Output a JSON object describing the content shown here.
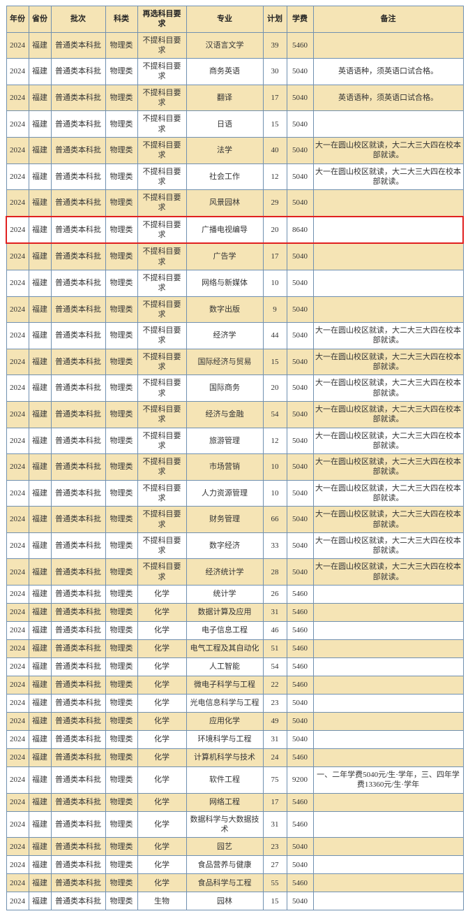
{
  "table": {
    "columns": [
      "年份",
      "省份",
      "批次",
      "科类",
      "再选科目要求",
      "专业",
      "计划",
      "学费",
      "备注"
    ],
    "column_classes": [
      "col-year",
      "col-prov",
      "col-batch",
      "col-cat",
      "col-req",
      "col-major",
      "col-plan",
      "col-fee",
      "col-note"
    ],
    "header_bg": "#f5e4b5",
    "zebra_bg": "#f5e4b5",
    "plain_bg": "#ffffff",
    "border_color": "#7090b0",
    "highlight_border": "#e02020",
    "font_family": "SimSun",
    "font_size_pt": 9,
    "highlighted_row_index": 7,
    "rows": [
      [
        "2024",
        "福建",
        "普通类本科批",
        "物理类",
        "不提科目要求",
        "汉语言文学",
        "39",
        "5460",
        ""
      ],
      [
        "2024",
        "福建",
        "普通类本科批",
        "物理类",
        "不提科目要求",
        "商务英语",
        "30",
        "5040",
        "英语语种，须英语口试合格。"
      ],
      [
        "2024",
        "福建",
        "普通类本科批",
        "物理类",
        "不提科目要求",
        "翻译",
        "17",
        "5040",
        "英语语种，须英语口试合格。"
      ],
      [
        "2024",
        "福建",
        "普通类本科批",
        "物理类",
        "不提科目要求",
        "日语",
        "15",
        "5040",
        ""
      ],
      [
        "2024",
        "福建",
        "普通类本科批",
        "物理类",
        "不提科目要求",
        "法学",
        "40",
        "5040",
        "大一在圆山校区就读，大二大三大四在校本部就读。"
      ],
      [
        "2024",
        "福建",
        "普通类本科批",
        "物理类",
        "不提科目要求",
        "社会工作",
        "12",
        "5040",
        "大一在圆山校区就读，大二大三大四在校本部就读。"
      ],
      [
        "2024",
        "福建",
        "普通类本科批",
        "物理类",
        "不提科目要求",
        "风景园林",
        "29",
        "5040",
        ""
      ],
      [
        "2024",
        "福建",
        "普通类本科批",
        "物理类",
        "不提科目要求",
        "广播电视编导",
        "20",
        "8640",
        ""
      ],
      [
        "2024",
        "福建",
        "普通类本科批",
        "物理类",
        "不提科目要求",
        "广告学",
        "17",
        "5040",
        ""
      ],
      [
        "2024",
        "福建",
        "普通类本科批",
        "物理类",
        "不提科目要求",
        "网络与新媒体",
        "10",
        "5040",
        ""
      ],
      [
        "2024",
        "福建",
        "普通类本科批",
        "物理类",
        "不提科目要求",
        "数字出版",
        "9",
        "5040",
        ""
      ],
      [
        "2024",
        "福建",
        "普通类本科批",
        "物理类",
        "不提科目要求",
        "经济学",
        "44",
        "5040",
        "大一在圆山校区就读，大二大三大四在校本部就读。"
      ],
      [
        "2024",
        "福建",
        "普通类本科批",
        "物理类",
        "不提科目要求",
        "国际经济与贸易",
        "15",
        "5040",
        "大一在圆山校区就读，大二大三大四在校本部就读。"
      ],
      [
        "2024",
        "福建",
        "普通类本科批",
        "物理类",
        "不提科目要求",
        "国际商务",
        "20",
        "5040",
        "大一在圆山校区就读，大二大三大四在校本部就读。"
      ],
      [
        "2024",
        "福建",
        "普通类本科批",
        "物理类",
        "不提科目要求",
        "经济与金融",
        "54",
        "5040",
        "大一在圆山校区就读，大二大三大四在校本部就读。"
      ],
      [
        "2024",
        "福建",
        "普通类本科批",
        "物理类",
        "不提科目要求",
        "旅游管理",
        "12",
        "5040",
        "大一在圆山校区就读，大二大三大四在校本部就读。"
      ],
      [
        "2024",
        "福建",
        "普通类本科批",
        "物理类",
        "不提科目要求",
        "市场营销",
        "10",
        "5040",
        "大一在圆山校区就读，大二大三大四在校本部就读。"
      ],
      [
        "2024",
        "福建",
        "普通类本科批",
        "物理类",
        "不提科目要求",
        "人力资源管理",
        "10",
        "5040",
        "大一在圆山校区就读，大二大三大四在校本部就读。"
      ],
      [
        "2024",
        "福建",
        "普通类本科批",
        "物理类",
        "不提科目要求",
        "财务管理",
        "66",
        "5040",
        "大一在圆山校区就读，大二大三大四在校本部就读。"
      ],
      [
        "2024",
        "福建",
        "普通类本科批",
        "物理类",
        "不提科目要求",
        "数字经济",
        "33",
        "5040",
        "大一在圆山校区就读，大二大三大四在校本部就读。"
      ],
      [
        "2024",
        "福建",
        "普通类本科批",
        "物理类",
        "不提科目要求",
        "经济统计学",
        "28",
        "5040",
        "大一在圆山校区就读，大二大三大四在校本部就读。"
      ],
      [
        "2024",
        "福建",
        "普通类本科批",
        "物理类",
        "化学",
        "统计学",
        "26",
        "5460",
        ""
      ],
      [
        "2024",
        "福建",
        "普通类本科批",
        "物理类",
        "化学",
        "数据计算及应用",
        "31",
        "5460",
        ""
      ],
      [
        "2024",
        "福建",
        "普通类本科批",
        "物理类",
        "化学",
        "电子信息工程",
        "46",
        "5460",
        ""
      ],
      [
        "2024",
        "福建",
        "普通类本科批",
        "物理类",
        "化学",
        "电气工程及其自动化",
        "51",
        "5460",
        ""
      ],
      [
        "2024",
        "福建",
        "普通类本科批",
        "物理类",
        "化学",
        "人工智能",
        "54",
        "5460",
        ""
      ],
      [
        "2024",
        "福建",
        "普通类本科批",
        "物理类",
        "化学",
        "微电子科学与工程",
        "22",
        "5460",
        ""
      ],
      [
        "2024",
        "福建",
        "普通类本科批",
        "物理类",
        "化学",
        "光电信息科学与工程",
        "23",
        "5040",
        ""
      ],
      [
        "2024",
        "福建",
        "普通类本科批",
        "物理类",
        "化学",
        "应用化学",
        "49",
        "5040",
        ""
      ],
      [
        "2024",
        "福建",
        "普通类本科批",
        "物理类",
        "化学",
        "环境科学与工程",
        "31",
        "5040",
        ""
      ],
      [
        "2024",
        "福建",
        "普通类本科批",
        "物理类",
        "化学",
        "计算机科学与技术",
        "24",
        "5460",
        ""
      ],
      [
        "2024",
        "福建",
        "普通类本科批",
        "物理类",
        "化学",
        "软件工程",
        "75",
        "9200",
        "一、二年学费5040元/生·学年，三、四年学费13360元/生·学年"
      ],
      [
        "2024",
        "福建",
        "普通类本科批",
        "物理类",
        "化学",
        "网络工程",
        "17",
        "5460",
        ""
      ],
      [
        "2024",
        "福建",
        "普通类本科批",
        "物理类",
        "化学",
        "数据科学与大数据技术",
        "31",
        "5460",
        ""
      ],
      [
        "2024",
        "福建",
        "普通类本科批",
        "物理类",
        "化学",
        "园艺",
        "23",
        "5040",
        ""
      ],
      [
        "2024",
        "福建",
        "普通类本科批",
        "物理类",
        "化学",
        "食品营养与健康",
        "27",
        "5040",
        ""
      ],
      [
        "2024",
        "福建",
        "普通类本科批",
        "物理类",
        "化学",
        "食品科学与工程",
        "55",
        "5460",
        ""
      ],
      [
        "2024",
        "福建",
        "普通类本科批",
        "物理类",
        "生物",
        "园林",
        "15",
        "5040",
        ""
      ]
    ]
  }
}
